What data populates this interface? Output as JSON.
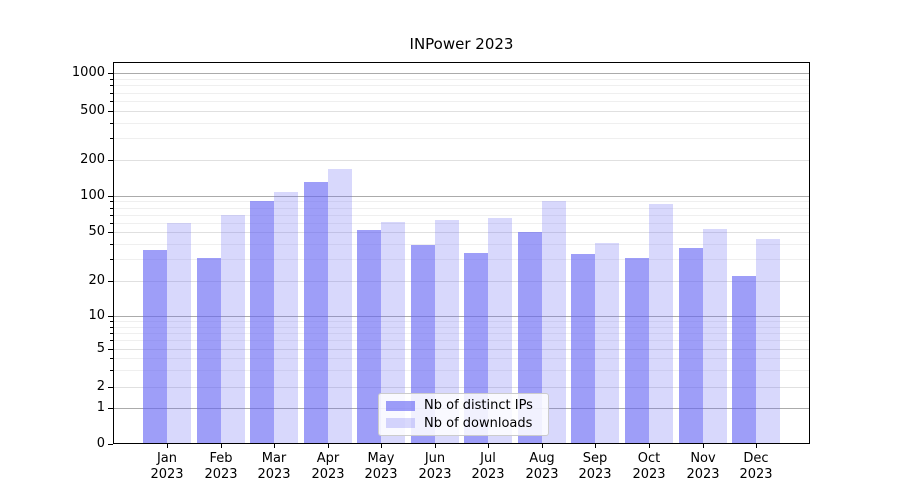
{
  "title": "INPower 2023",
  "chart_data": {
    "type": "bar",
    "title": "INPower 2023",
    "yscale": "symlog",
    "categories": [
      "Jan",
      "Feb",
      "Mar",
      "Apr",
      "May",
      "Jun",
      "Jul",
      "Aug",
      "Sep",
      "Oct",
      "Nov",
      "Dec"
    ],
    "year_label": "2023",
    "series": [
      {
        "name": "Nb of distinct IPs",
        "color": "rgba(99,99,243,0.62)",
        "values": [
          36,
          31,
          90,
          130,
          52,
          39,
          34,
          50,
          33,
          31,
          37,
          22
        ]
      },
      {
        "name": "Nb of downloads",
        "color": "rgba(99,99,243,0.25)",
        "values": [
          60,
          70,
          107,
          168,
          61,
          63,
          66,
          90,
          41,
          86,
          53,
          44
        ]
      }
    ],
    "y_ticks": [
      0,
      1,
      2,
      5,
      10,
      20,
      50,
      100,
      200,
      500,
      1000
    ],
    "ylim": [
      0,
      1100
    ],
    "xlabel": "",
    "ylabel": "",
    "grid": true,
    "legend_position": "lower center",
    "colors": {
      "axis": "#000000",
      "grid_decade": "#ababab",
      "grid_major": "#e0e0e0",
      "grid_minor": "#efefef",
      "background": "#ffffff"
    }
  }
}
